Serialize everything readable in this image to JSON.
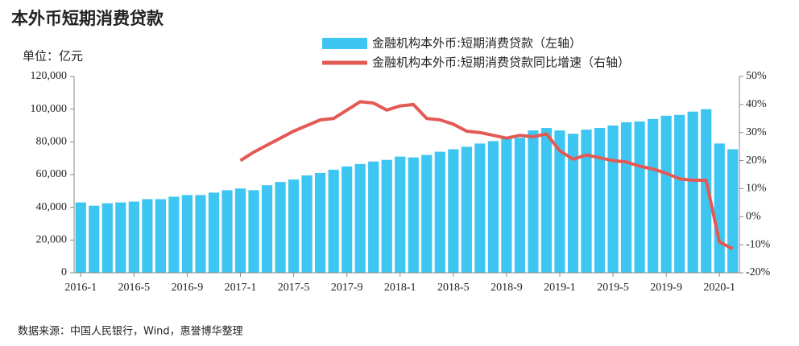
{
  "chart_data": {
    "type": "bar_line",
    "title": "本外币短期消费贷款",
    "unit_label": "单位：亿元",
    "source": "数据来源：中国人民银行，Wind，惠誉博华整理",
    "categories": [
      "2016-1",
      null,
      null,
      null,
      "2016-5",
      null,
      null,
      null,
      "2016-9",
      null,
      null,
      null,
      "2017-1",
      null,
      null,
      null,
      "2017-5",
      null,
      null,
      null,
      "2017-9",
      null,
      null,
      null,
      "2018-1",
      null,
      null,
      null,
      "2018-5",
      null,
      null,
      null,
      "2018-9",
      null,
      null,
      null,
      "2019-1",
      null,
      null,
      null,
      "2019-5",
      null,
      null,
      null,
      "2019-9",
      null,
      null,
      null,
      "2020-1",
      null
    ],
    "series": [
      {
        "name": "金融机构本外币:短期消费贷款（左轴）",
        "kind": "bar",
        "color": "#3ec6f2",
        "values": [
          43000,
          41000,
          42500,
          43000,
          43500,
          45000,
          45000,
          46500,
          47500,
          47500,
          49000,
          50500,
          51500,
          50500,
          53500,
          55500,
          57000,
          59500,
          61000,
          63000,
          65000,
          66500,
          68000,
          69000,
          71000,
          70500,
          72000,
          74000,
          75500,
          77000,
          79000,
          80500,
          82000,
          82500,
          87000,
          88500,
          87000,
          85000,
          87500,
          88500,
          90000,
          92000,
          92500,
          94000,
          96000,
          96500,
          98500,
          100000,
          79000,
          75500
        ]
      },
      {
        "name": "金融机构本外币:短期消费贷款同比增速（右轴）",
        "kind": "line",
        "axis": "y2",
        "color": "#e35a55",
        "values": [
          null,
          null,
          null,
          null,
          null,
          null,
          null,
          null,
          null,
          null,
          null,
          null,
          20,
          23,
          25.5,
          28,
          30.5,
          32.5,
          34.5,
          35,
          38,
          41,
          40.5,
          38,
          39.5,
          40,
          35,
          34.5,
          33,
          30.5,
          30,
          29,
          28,
          29,
          28.5,
          29.5,
          23.5,
          20.5,
          22,
          21,
          20,
          19.5,
          18,
          17,
          15.5,
          13.5,
          13,
          13,
          -9,
          -11.5
        ]
      }
    ],
    "ylim": [
      0,
      120000
    ],
    "yticks": [
      0,
      {
        "value": 20000,
        "label": "20,000"
      },
      {
        "value": 40000,
        "label": "40,000"
      },
      {
        "value": 60000,
        "label": "60,000"
      },
      {
        "value": 80000,
        "label": "80,000"
      },
      {
        "value": 100000,
        "label": "100,000"
      },
      {
        "value": 120000,
        "label": "120,000"
      }
    ],
    "y2lim": [
      -20,
      50
    ],
    "y2ticks": [
      {
        "value": -20,
        "label": "-20%"
      },
      {
        "value": -10,
        "label": "-10%"
      },
      {
        "value": 0,
        "label": "0%"
      },
      {
        "value": 10,
        "label": "10%"
      },
      {
        "value": 20,
        "label": "20%"
      },
      {
        "value": 30,
        "label": "30%"
      },
      {
        "value": 40,
        "label": "40%"
      },
      {
        "value": 50,
        "label": "50%"
      }
    ]
  }
}
